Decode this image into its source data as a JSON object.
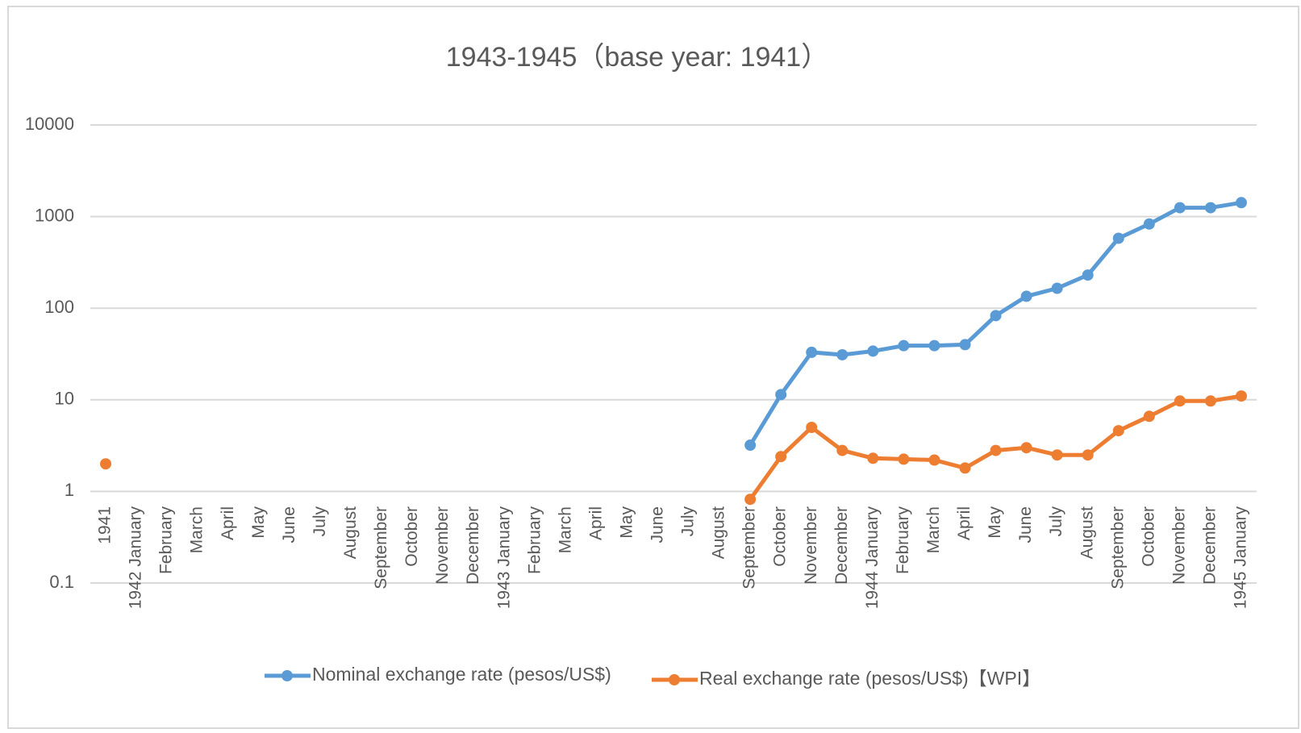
{
  "chart_data": {
    "type": "line",
    "title": "1943-1945（base year: 1941）",
    "categories": [
      "1941",
      "1942 January",
      "February",
      "March",
      "April",
      "May",
      "June",
      "July",
      "August",
      "September",
      "October",
      "November",
      "December",
      "1943 January",
      "February",
      "March",
      "April",
      "May",
      "June",
      "July",
      "August",
      "September",
      "October",
      "November",
      "December",
      "1944 January",
      "February",
      "March",
      "April",
      "May",
      "June",
      "July",
      "August",
      "September",
      "October",
      "November",
      "December",
      "1945 January"
    ],
    "series": [
      {
        "name": "Nominal exchange rate (pesos/US$)",
        "color": "#5b9bd5",
        "values": [
          null,
          null,
          null,
          null,
          null,
          null,
          null,
          null,
          null,
          null,
          null,
          null,
          null,
          null,
          null,
          null,
          null,
          null,
          null,
          null,
          null,
          3.2,
          11.4,
          33,
          31,
          34,
          39,
          39,
          40,
          83,
          135,
          165,
          230,
          580,
          830,
          1250,
          1250,
          1420
        ]
      },
      {
        "name": "Real exchange rate (pesos/US$)【WPI】",
        "color": "#ed7d31",
        "values": [
          2.0,
          null,
          null,
          null,
          null,
          null,
          null,
          null,
          null,
          null,
          null,
          null,
          null,
          null,
          null,
          null,
          null,
          null,
          null,
          null,
          null,
          0.82,
          2.4,
          5.0,
          2.8,
          2.3,
          2.25,
          2.2,
          1.8,
          2.8,
          3.0,
          2.5,
          2.5,
          4.6,
          6.6,
          9.7,
          9.7,
          11
        ]
      }
    ],
    "ylim": [
      0.1,
      10000
    ],
    "yticks": [
      0.1,
      1,
      10,
      100,
      1000,
      10000
    ],
    "log_y": true,
    "grid": true,
    "legend": "bottom"
  }
}
